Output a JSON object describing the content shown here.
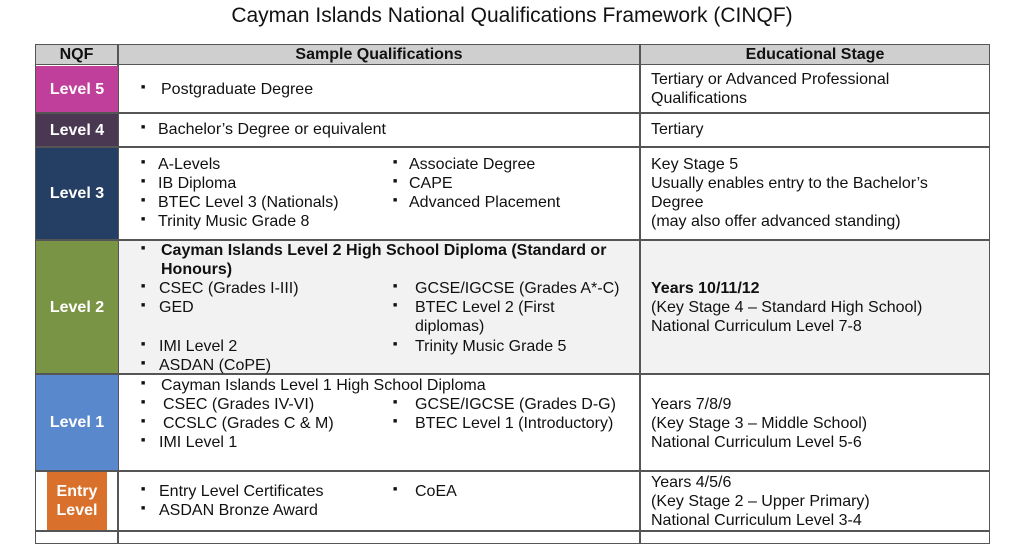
{
  "title": "Cayman Islands National Qualifications Framework (CINQF)",
  "headers": {
    "nqf": "NQF",
    "sample": "Sample Qualifications",
    "stage": "Educational Stage"
  },
  "colors": {
    "level5": "#c03f9b",
    "level4": "#4a3752",
    "level3": "#253e63",
    "level2": "#7a9445",
    "level1": "#5a88cc",
    "entry": "#d9712c",
    "header": "#cfcfcf",
    "level2_row": "#f2f2f2"
  },
  "rows": [
    {
      "level": "Level 5",
      "quals_left": [
        "Postgraduate Degree"
      ],
      "quals_right": [],
      "stage": [
        "Tertiary or Advanced Professional",
        "Qualifications"
      ]
    },
    {
      "level": "Level 4",
      "quals_left": [
        "Bachelor’s Degree or equivalent"
      ],
      "quals_right": [],
      "stage": [
        "Tertiary"
      ]
    },
    {
      "level": "Level 3",
      "quals_left": [
        "A-Levels",
        "IB Diploma",
        "BTEC Level 3 (Nationals)",
        "Trinity Music Grade 8"
      ],
      "quals_right": [
        "Associate Degree",
        "CAPE",
        "Advanced Placement"
      ],
      "stage": [
        "Key Stage 5",
        "Usually enables entry to the Bachelor’s",
        "Degree",
        "(may also offer advanced standing)"
      ]
    },
    {
      "level": "Level 2",
      "quals_left": [
        "Cayman Islands Level 2 High School Diploma (Standard or",
        "Honours)",
        "CSEC (Grades I-III)",
        "GED",
        "IMI Level 2",
        "ASDAN (CoPE)"
      ],
      "quals_right": [
        "GCSE/IGCSE (Grades A*-C)",
        "BTEC Level 2 (First",
        "diplomas)",
        "Trinity Music Grade 5"
      ],
      "stage": [
        "Years 10/11/12",
        "(Key Stage 4 – Standard High School)",
        "National Curriculum Level 7-8"
      ]
    },
    {
      "level": "Level 1",
      "quals_left": [
        "Cayman Islands Level 1 High School Diploma",
        "CSEC (Grades IV-VI)",
        "CCSLC (Grades C & M)",
        "IMI Level 1"
      ],
      "quals_right": [
        "GCSE/IGCSE (Grades D-G)",
        "BTEC Level 1 (Introductory)"
      ],
      "stage": [
        "Years 7/8/9",
        "(Key Stage 3 – Middle School)",
        "National Curriculum Level 5-6"
      ]
    },
    {
      "level": "Entry Level",
      "quals_left": [
        "Entry Level Certificates",
        "ASDAN Bronze Award"
      ],
      "quals_right": [
        "CoEA"
      ],
      "stage": [
        "Years 4/5/6",
        "(Key Stage 2 – Upper Primary)",
        "National Curriculum Level 3-4"
      ]
    }
  ]
}
